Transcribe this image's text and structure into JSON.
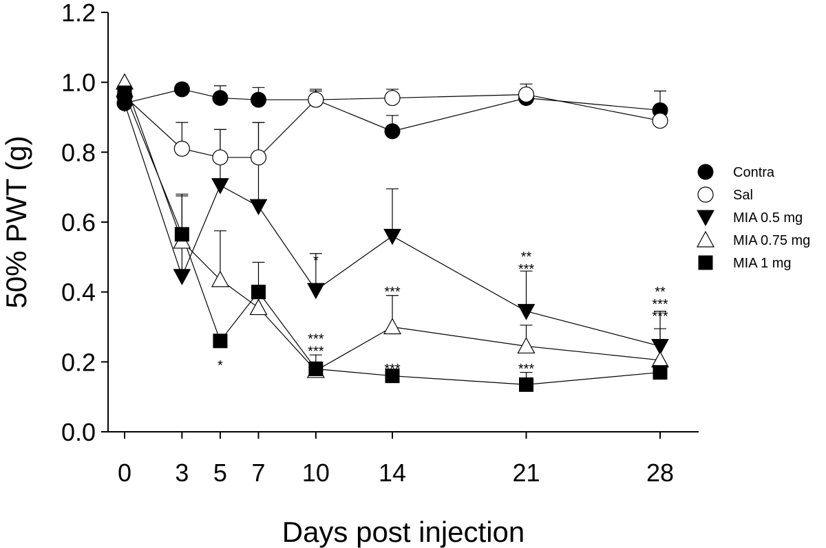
{
  "chart_data": {
    "type": "line",
    "title": "",
    "xlabel": "Days post injection",
    "ylabel": "50% PWT (g)",
    "x": [
      0,
      3,
      5,
      7,
      10,
      14,
      21,
      28
    ],
    "x_ticks": [
      "0",
      "3",
      "5",
      "7",
      "10",
      "14",
      "21",
      "28"
    ],
    "xlim": [
      -1,
      29
    ],
    "ylim": [
      0.0,
      1.2
    ],
    "y_ticks": [
      "0.0",
      "0.2",
      "0.4",
      "0.6",
      "0.8",
      "1.0",
      "1.2"
    ],
    "grid": false,
    "legend_position": "right",
    "series": [
      {
        "name": "Contra",
        "marker": "circle-filled",
        "values": [
          0.94,
          0.98,
          0.955,
          0.95,
          0.95,
          0.86,
          0.955,
          0.92
        ],
        "errors": [
          0.0,
          0.015,
          0.035,
          0.035,
          0.03,
          0.045,
          0.015,
          0.055
        ]
      },
      {
        "name": "Sal",
        "marker": "circle-open",
        "values": [
          0.96,
          0.81,
          0.785,
          0.785,
          0.95,
          0.955,
          0.965,
          0.89
        ],
        "errors": [
          0.0,
          0.075,
          0.08,
          0.1,
          0.025,
          0.025,
          0.03,
          0.0
        ]
      },
      {
        "name": "MIA 0.5 mg",
        "marker": "triangle-down-filled",
        "values": [
          0.94,
          0.445,
          0.705,
          0.645,
          0.405,
          0.56,
          0.345,
          0.245
        ],
        "errors": [
          0.0,
          0.235,
          0.16,
          0.24,
          0.105,
          0.135,
          0.115,
          0.1
        ]
      },
      {
        "name": "MIA 0.75 mg",
        "marker": "triangle-up-open",
        "values": [
          1.0,
          0.545,
          0.435,
          0.355,
          0.175,
          0.3,
          0.245,
          0.205
        ],
        "errors": [
          0.0,
          0.13,
          0.14,
          0.13,
          0.045,
          0.09,
          0.06,
          0.09
        ]
      },
      {
        "name": "MIA 1 mg",
        "marker": "square-filled",
        "values": [
          0.97,
          0.565,
          0.26,
          0.4,
          0.18,
          0.16,
          0.135,
          0.17
        ],
        "errors": [
          0.0,
          0.0,
          0.0,
          0.0,
          0.02,
          0.0,
          0.035,
          0.0
        ]
      }
    ],
    "annotations": [
      {
        "x": 5,
        "y": 0.205,
        "text": "*"
      },
      {
        "x": 10,
        "y": 0.505,
        "text": "*"
      },
      {
        "x": 10,
        "y": 0.28,
        "text": "***"
      },
      {
        "x": 10,
        "y": 0.245,
        "text": "***"
      },
      {
        "x": 14,
        "y": 0.415,
        "text": "***"
      },
      {
        "x": 14,
        "y": 0.195,
        "text": "***"
      },
      {
        "x": 21,
        "y": 0.515,
        "text": "**"
      },
      {
        "x": 21,
        "y": 0.48,
        "text": "***"
      },
      {
        "x": 21,
        "y": 0.195,
        "text": "***"
      },
      {
        "x": 28,
        "y": 0.415,
        "text": "**"
      },
      {
        "x": 28,
        "y": 0.38,
        "text": "***"
      },
      {
        "x": 28,
        "y": 0.345,
        "text": "***"
      }
    ]
  }
}
